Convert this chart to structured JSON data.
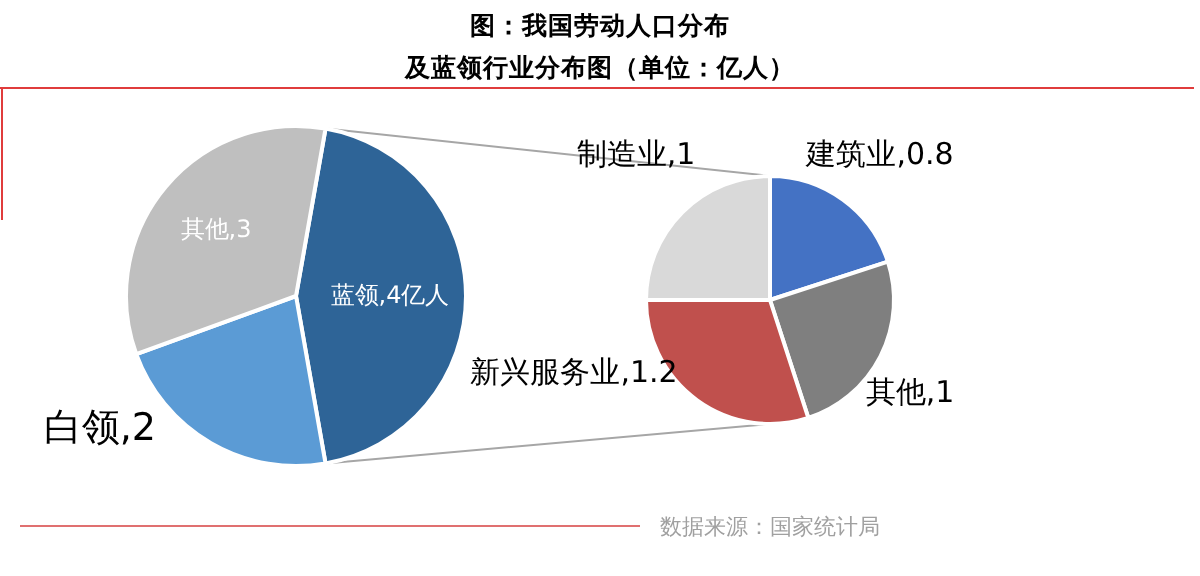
{
  "chart_data": [
    {
      "type": "pie",
      "title": "图：我国劳动人口分布",
      "subtitle": "及蓝领行业分布图（单位：亿人）",
      "categories": [
        "蓝领",
        "白领",
        "其他"
      ],
      "values": [
        4,
        2,
        3
      ],
      "colors": [
        "#2e6497",
        "#5b9bd5",
        "#bfbfbf"
      ],
      "value_labels": [
        "4亿人",
        "2",
        "3"
      ],
      "annotations": [
        "数据来源：国家统计局"
      ]
    },
    {
      "type": "pie",
      "categories": [
        "建筑业",
        "其他",
        "新兴服务业",
        "制造业"
      ],
      "values": [
        0.8,
        1,
        1.2,
        1
      ],
      "colors": [
        "#4472c4",
        "#7f7f7f",
        "#c0504d",
        "#d9d9d9"
      ],
      "value_labels": [
        "0.8",
        "1",
        "1.2",
        "1"
      ]
    }
  ]
}
